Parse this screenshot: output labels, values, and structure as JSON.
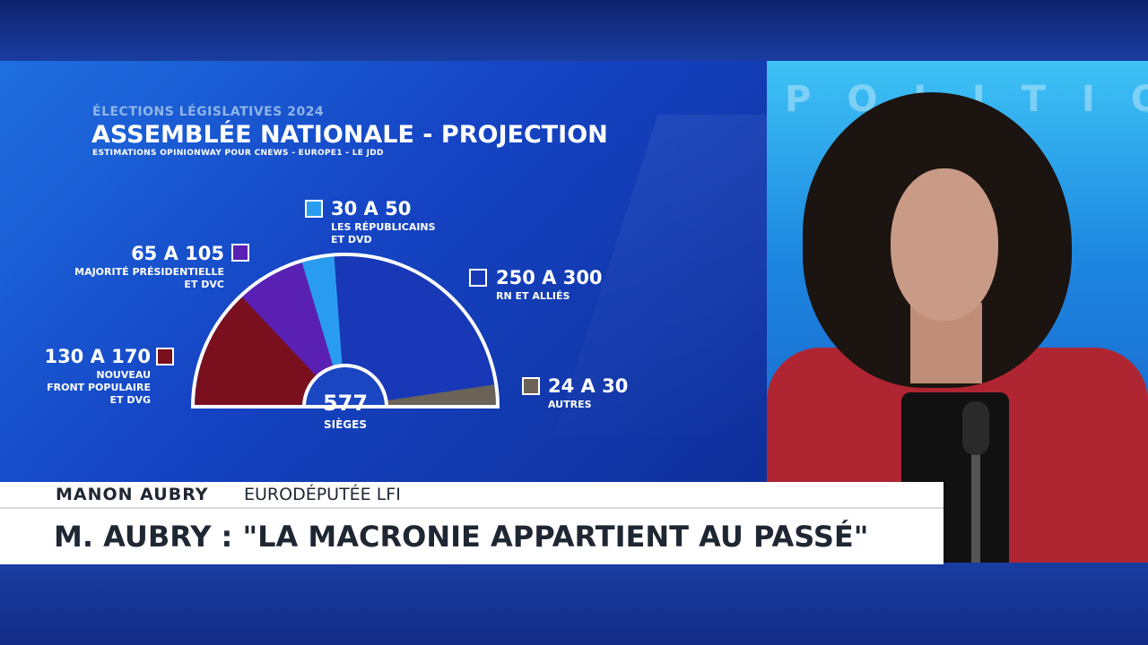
{
  "graphic": {
    "supertitle": "ÉLECTIONS LÉGISLATIVES 2024",
    "title": "ASSEMBLÉE NATIONALE - PROJECTION",
    "subtitle": "ESTIMATIONS OPINIONWAY POUR CNEWS - EUROPE1 - LE JDD"
  },
  "chart_data": {
    "type": "pie",
    "subtype": "parliament-hemicycle",
    "total_label_value": "577",
    "total_label_unit": "SIÈGES",
    "total_seats": 577,
    "series": [
      {
        "range": "130 A 170",
        "party_lines": [
          "NOUVEAU",
          "FRONT POPULAIRE",
          "ET DVG"
        ],
        "min": 130,
        "max": 170,
        "color": "#7a0f1d"
      },
      {
        "range": "65 A 105",
        "party_lines": [
          "MAJORITÉ PRÉSIDENTIELLE",
          "ET DVC"
        ],
        "min": 65,
        "max": 105,
        "color": "#5a1fb3"
      },
      {
        "range": "30 A 50",
        "party_lines": [
          "LES RÉPUBLICAINS",
          "ET DVD"
        ],
        "min": 30,
        "max": 50,
        "color": "#2a9cf0"
      },
      {
        "range": "250 A 300",
        "party_lines": [
          "RN ET ALLIÉS"
        ],
        "min": 250,
        "max": 300,
        "color": "#1838b8"
      },
      {
        "range": "24 A 30",
        "party_lines": [
          "AUTRES"
        ],
        "min": 24,
        "max": 30,
        "color": "#6b6357"
      }
    ]
  },
  "lower_third": {
    "name": "MANON AUBRY",
    "role": "EURODÉPUTÉE LFI",
    "headline": "M. AUBRY : \"LA MACRONIE APPARTIENT AU PASSÉ\""
  },
  "colors": {
    "background": "#17308f",
    "white": "#ffffff"
  },
  "studio": {
    "backdrop_letters": "POLITIQU"
  }
}
